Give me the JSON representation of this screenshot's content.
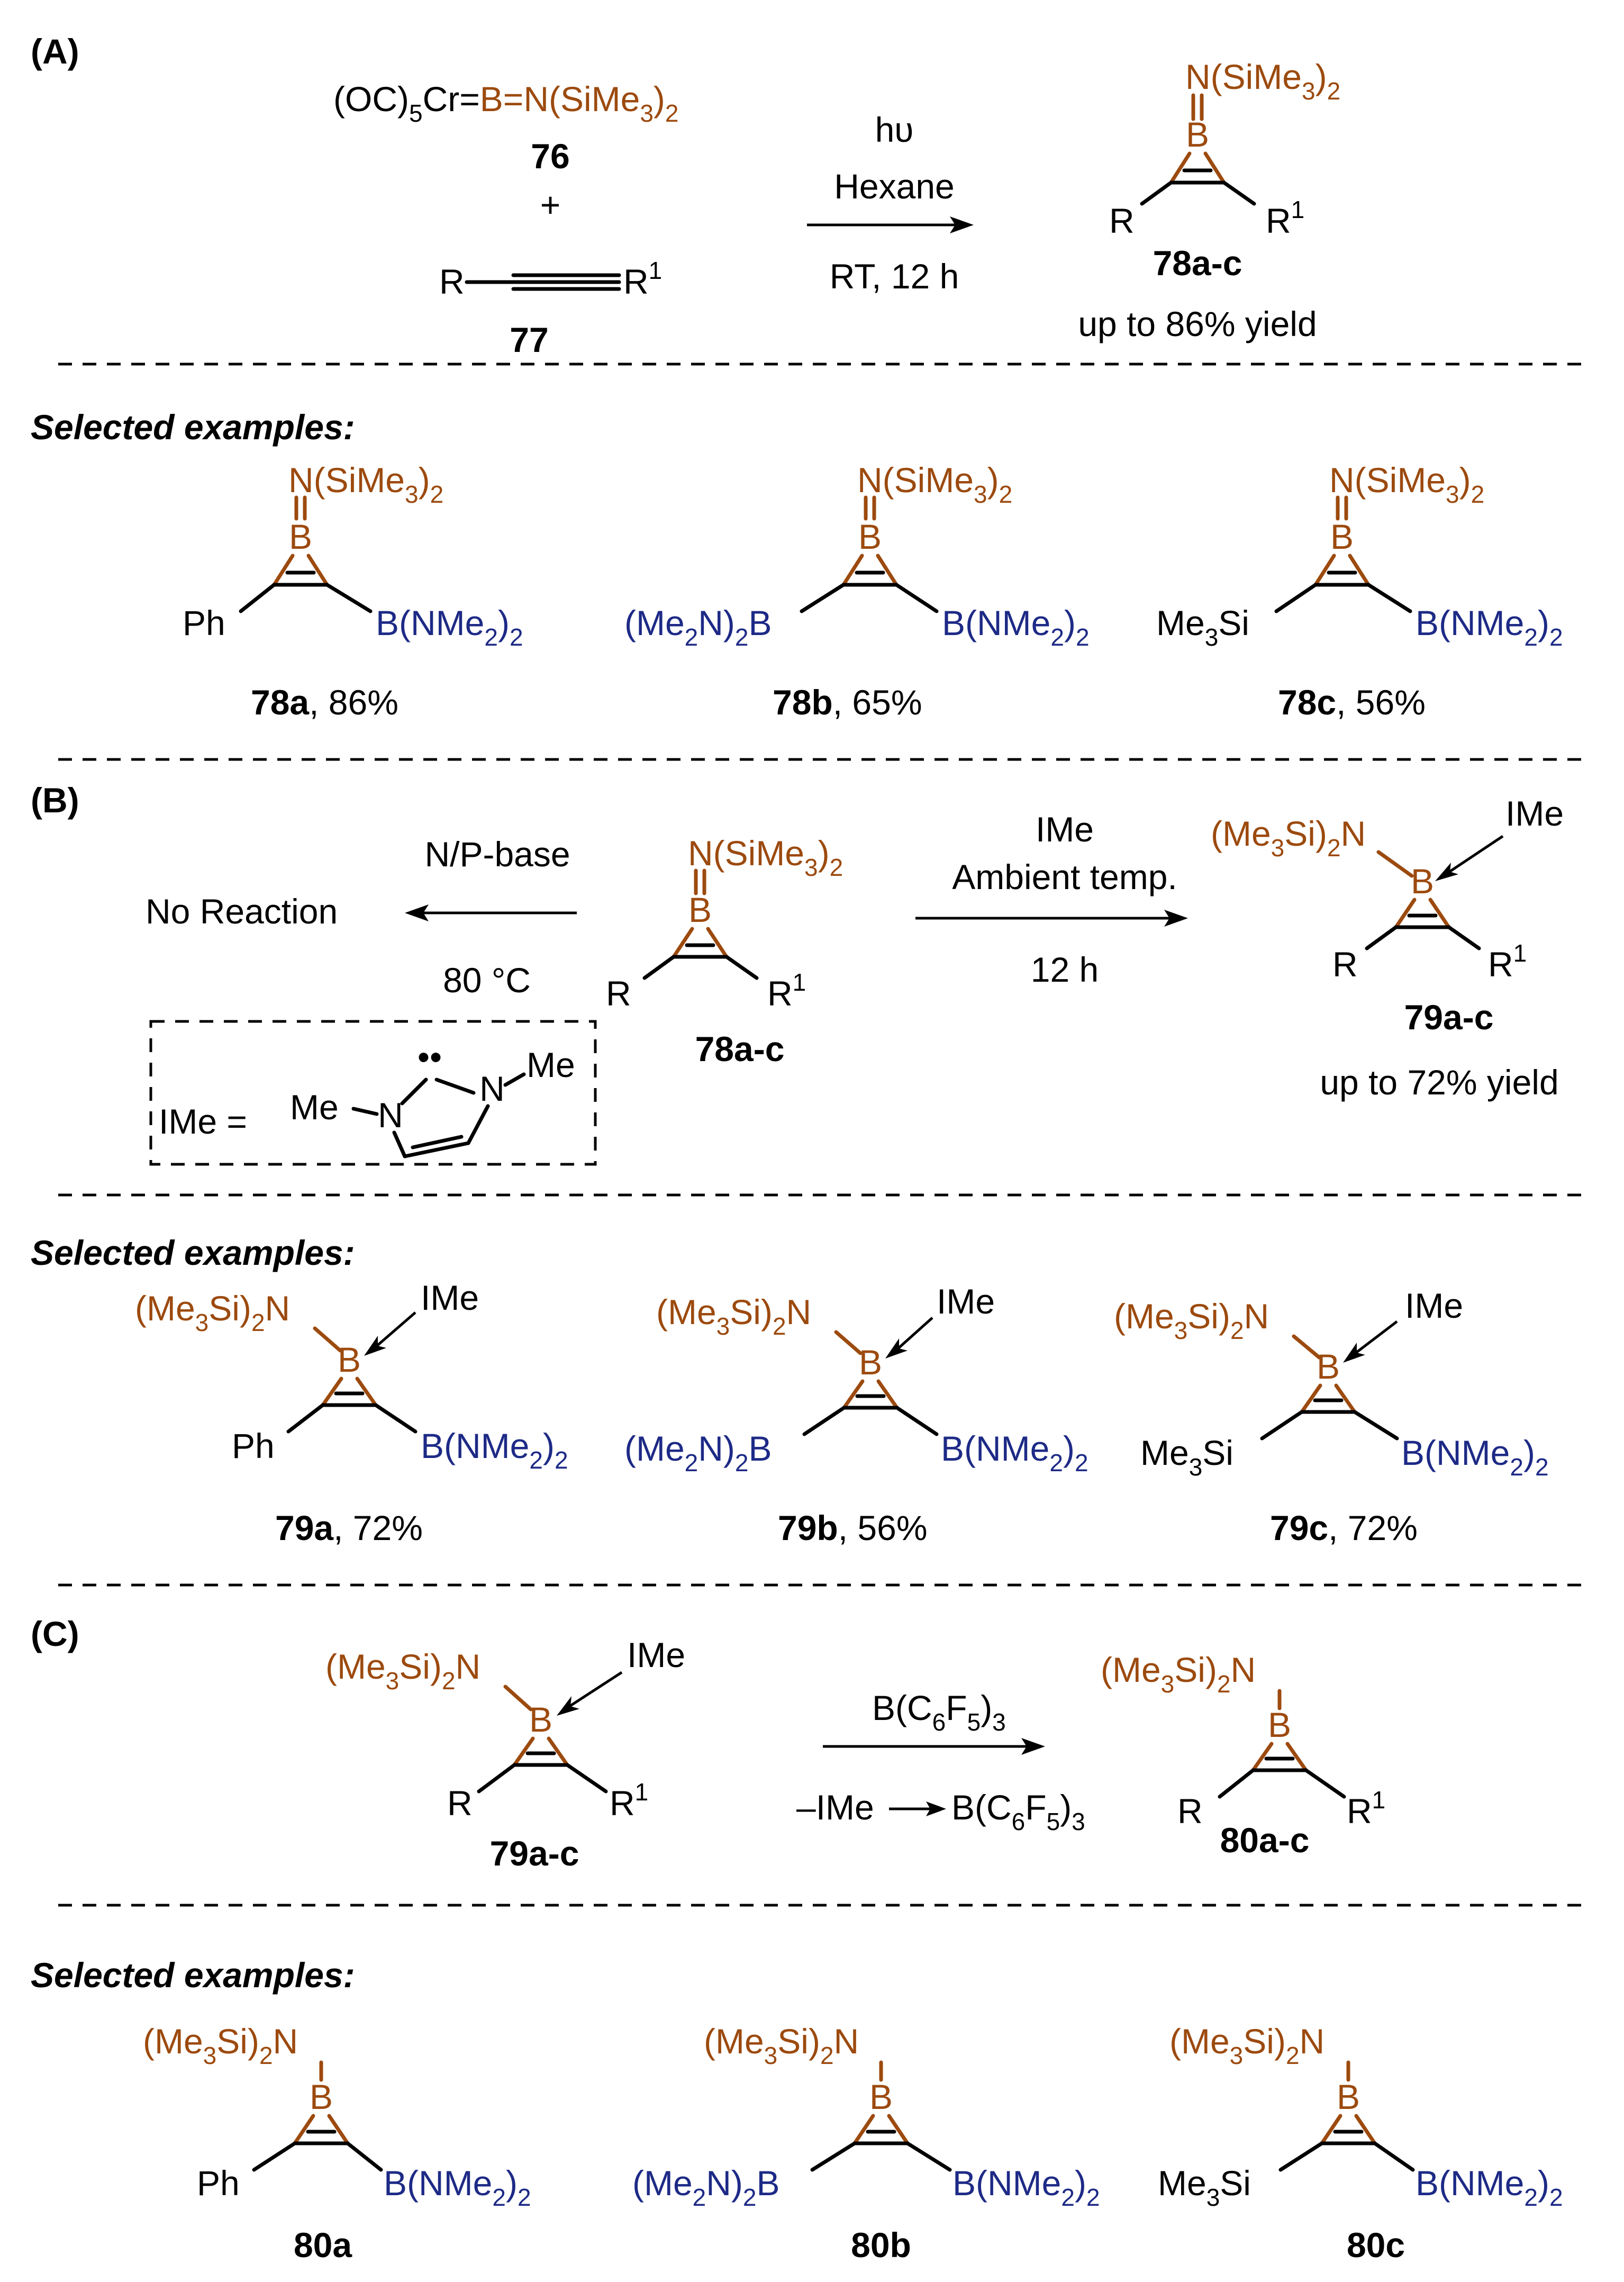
{
  "sections": {
    "a": "(A)",
    "b": "(B)",
    "c": "(C)"
  },
  "selected_label": "Selected examples:",
  "A": {
    "reagent_76": {
      "pre": "(OC)",
      "s1": "5",
      "mid": "Cr=",
      "boron": "B=N(SiMe",
      "s2": "3",
      "post": ")",
      "s3": "2"
    },
    "label_76": "76",
    "plus": "+",
    "alkyne_R": "R",
    "alkyne_R1": "R",
    "alkyne_sup": "1",
    "label_77": "77",
    "cond_light": "hυ",
    "cond_solvent": "Hexane",
    "cond_time": "RT, 12 h",
    "label_78": "78a-c",
    "yield": "up to 86% yield"
  },
  "common": {
    "n_pre": "N(SiMe",
    "n_sub1": "3",
    "n_mid": ")",
    "n_sub2": "2",
    "boron": "B",
    "amine_pre": "(Me",
    "amine_s1": "3",
    "amine_mid": "Si)",
    "amine_s2": "2",
    "amine_post": "N",
    "ime": "IMe",
    "R": "R",
    "R1": "R",
    "sup1": "1",
    "ph": "Ph",
    "bnme_pre": "B(NMe",
    "bnme_s1": "2",
    "bnme_mid": ")",
    "bnme_s2": "2",
    "mebn_pre": "(Me",
    "mebn_s1": "2",
    "mebn_mid": "N)",
    "mebn_s2": "2",
    "mebn_post": "B",
    "tms_pre": "Me",
    "tms_s": "3",
    "tms_post": "Si"
  },
  "ex78": {
    "a": {
      "label": "78a",
      "yield": ", 86%"
    },
    "b": {
      "label": "78b",
      "yield": ", 65%"
    },
    "c": {
      "label": "78c",
      "yield": ", 56%"
    }
  },
  "B": {
    "cond_left_top": "N/P-base",
    "no_reaction": "No Reaction",
    "cond_left_bottom": "80 °C",
    "cond_right_1": "IMe",
    "cond_right_2": "Ambient temp.",
    "cond_right_3": "12 h",
    "label_78": "78a-c",
    "label_79": "79a-c",
    "yield": "up to 72% yield",
    "ime_def_eq": "IMe =",
    "ime_me": "Me",
    "ime_n": "N",
    "ime_carbene": "••"
  },
  "ex79": {
    "a": {
      "label": "79a",
      "yield": ", 72%"
    },
    "b": {
      "label": "79b",
      "yield": ", 56%"
    },
    "c": {
      "label": "79c",
      "yield": ", 72%"
    }
  },
  "C": {
    "label_79": "79a-c",
    "reagent_pre": "B(C",
    "reagent_s1": "6",
    "reagent_mid": "F",
    "reagent_s2": "5",
    "reagent_post": ")",
    "reagent_s3": "3",
    "byprod_ime": "–IMe",
    "label_80": "80a-c"
  },
  "ex80": {
    "a": {
      "label": "80a"
    },
    "b": {
      "label": "80b"
    },
    "c": {
      "label": "80c"
    }
  }
}
